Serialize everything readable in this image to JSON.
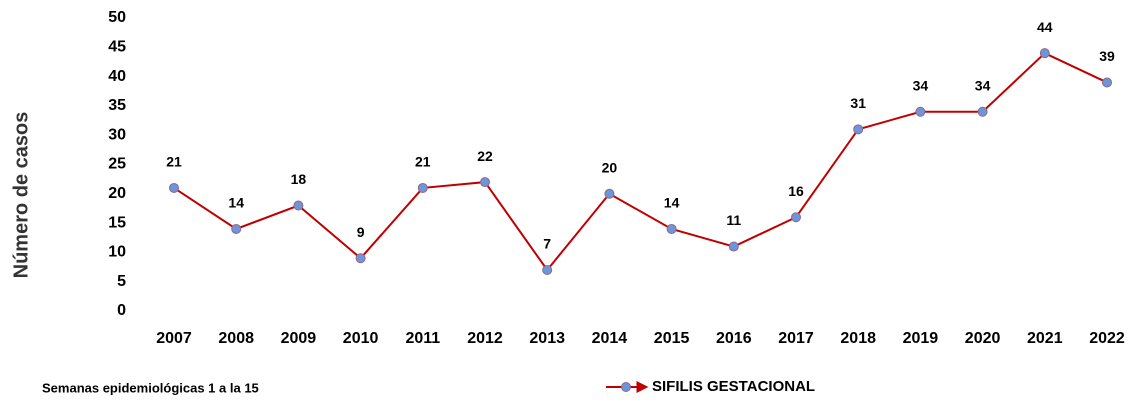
{
  "chart_data": {
    "type": "line",
    "y_label": "Número de casos",
    "footnote": "Semanas epidemiológicas 1 a la 15",
    "categories": [
      "2007",
      "2008",
      "2009",
      "2010",
      "2011",
      "2012",
      "2013",
      "2014",
      "2015",
      "2016",
      "2017",
      "2018",
      "2019",
      "2020",
      "2021",
      "2022"
    ],
    "series": [
      {
        "name": "SIFILIS GESTACIONAL",
        "color": "#c00000",
        "marker_color": "#7094d8",
        "values": [
          21,
          14,
          18,
          9,
          21,
          22,
          7,
          20,
          14,
          11,
          16,
          31,
          34,
          34,
          44,
          39
        ]
      }
    ],
    "ylim": [
      0,
      50
    ],
    "yticks": [
      0,
      5,
      10,
      15,
      20,
      25,
      30,
      35,
      40,
      45,
      50
    ],
    "grid": false
  }
}
